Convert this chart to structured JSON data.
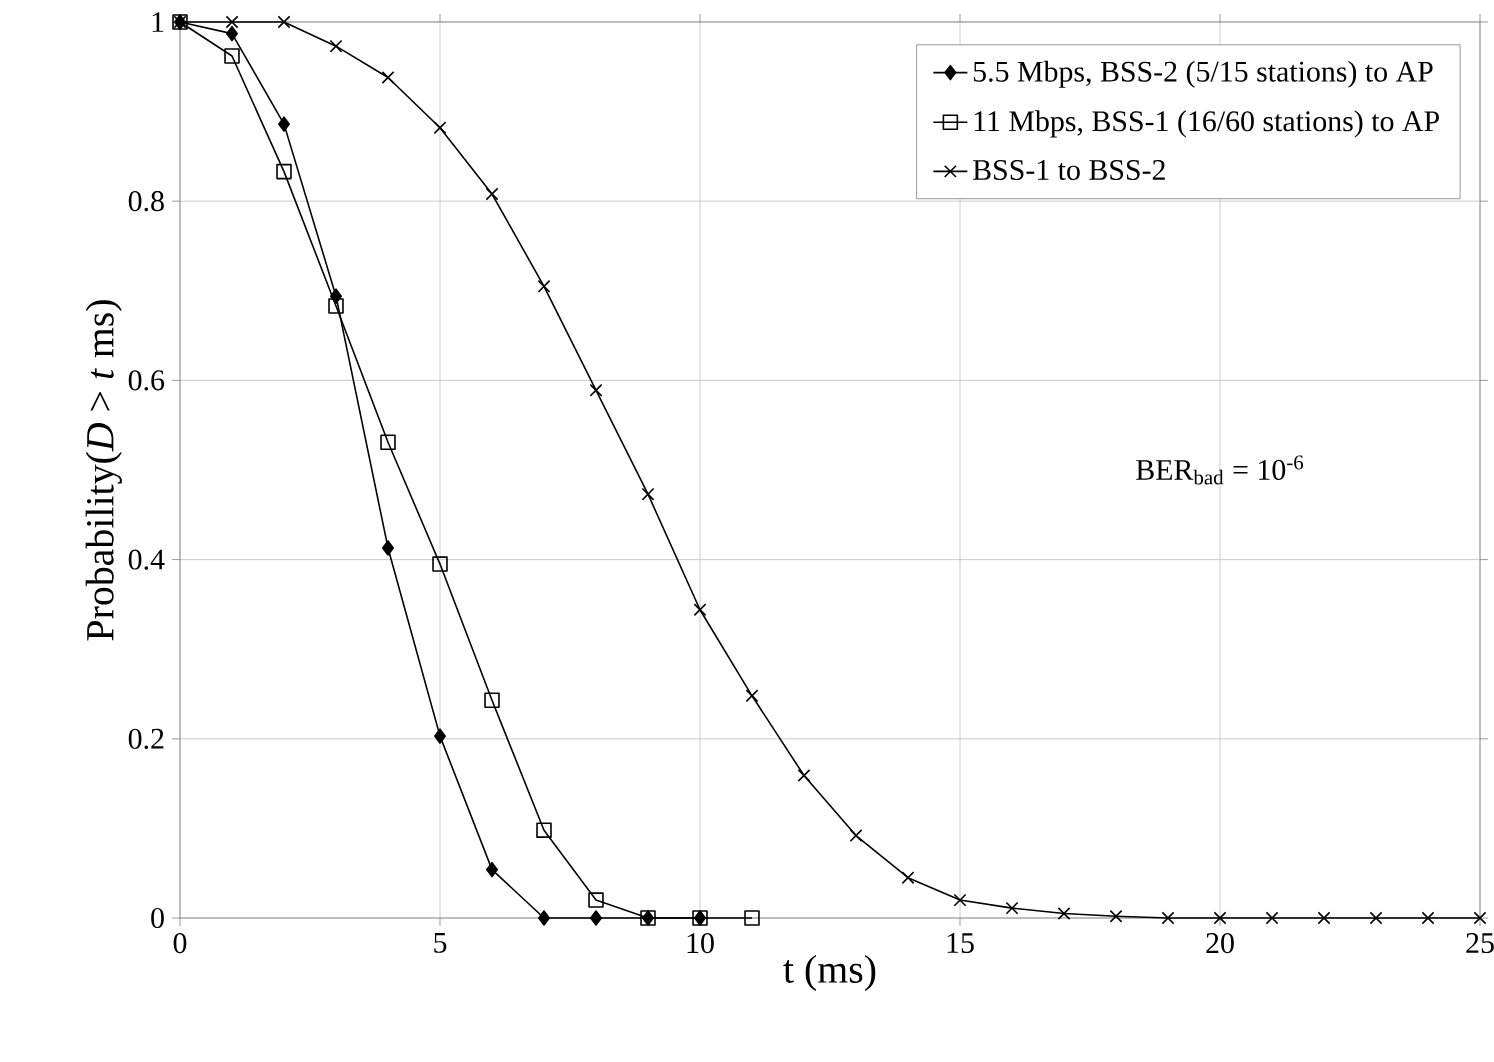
{
  "chart_data": {
    "type": "line",
    "xlabel": "t (ms)",
    "ylabel": "Probability(*D* > *t* ms)",
    "xlim": [
      0,
      25
    ],
    "xticks": [
      0,
      5,
      10,
      15,
      20,
      25
    ],
    "ylim": [
      0,
      1
    ],
    "yticks": [
      {
        "value": 0,
        "label": "0"
      },
      {
        "value": 0.2,
        "label": "0.2"
      },
      {
        "value": 0.4,
        "label": "0.4"
      },
      {
        "value": 0.6,
        "label": "0.6"
      },
      {
        "value": 0.8,
        "label": "0.8"
      },
      {
        "value": 1,
        "label": "1"
      }
    ],
    "grid": true,
    "legend": "top right",
    "line_style": "solid",
    "annotations": [
      "BER$_{bad}$ = 10$^{-6}$"
    ],
    "series": [
      {
        "name": "5.5 Mbps, BSS-2 (5/15 stations) to AP",
        "color": "#000000",
        "marker": "diamond",
        "x": [
          0,
          1,
          2,
          3,
          4,
          5,
          6,
          7,
          8,
          9,
          10
        ],
        "values": [
          1,
          0.987,
          0.886,
          0.694,
          0.413,
          0.203,
          0.054,
          0,
          0,
          0,
          0
        ]
      },
      {
        "name": "11 Mbps, BSS-1 (16/60 stations) to AP",
        "color": "#000000",
        "marker": "square",
        "x": [
          0,
          1,
          2,
          3,
          4,
          5,
          6,
          7,
          8,
          9,
          10,
          11
        ],
        "values": [
          1,
          0.962,
          0.833,
          0.683,
          0.531,
          0.395,
          0.243,
          0.098,
          0.02,
          0,
          0,
          0
        ]
      },
      {
        "name": "BSS-1 to BSS-2",
        "color": "#000000",
        "marker": "cross",
        "x": [
          0,
          1,
          2,
          3,
          4,
          5,
          6,
          7,
          8,
          9,
          10,
          11,
          12,
          13,
          14,
          15,
          16,
          17,
          18,
          19,
          20,
          21,
          22,
          23,
          24,
          25
        ],
        "values": [
          1,
          1,
          1,
          0.973,
          0.938,
          0.882,
          0.808,
          0.705,
          0.589,
          0.473,
          0.344,
          0.248,
          0.159,
          0.092,
          0.045,
          0.02,
          0.011,
          0.005,
          0.002,
          0,
          0,
          0,
          0,
          0,
          0,
          0
        ]
      }
    ]
  }
}
